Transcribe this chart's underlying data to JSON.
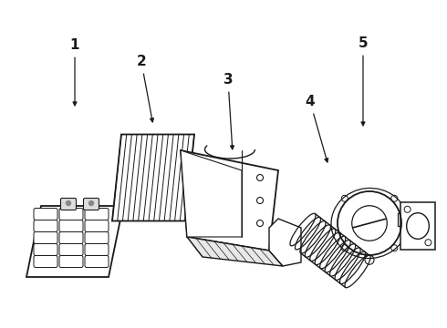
{
  "background_color": "#ffffff",
  "line_color": "#1a1a1a",
  "label_fontsize": 11,
  "fig_width": 4.9,
  "fig_height": 3.6,
  "dpi": 100
}
